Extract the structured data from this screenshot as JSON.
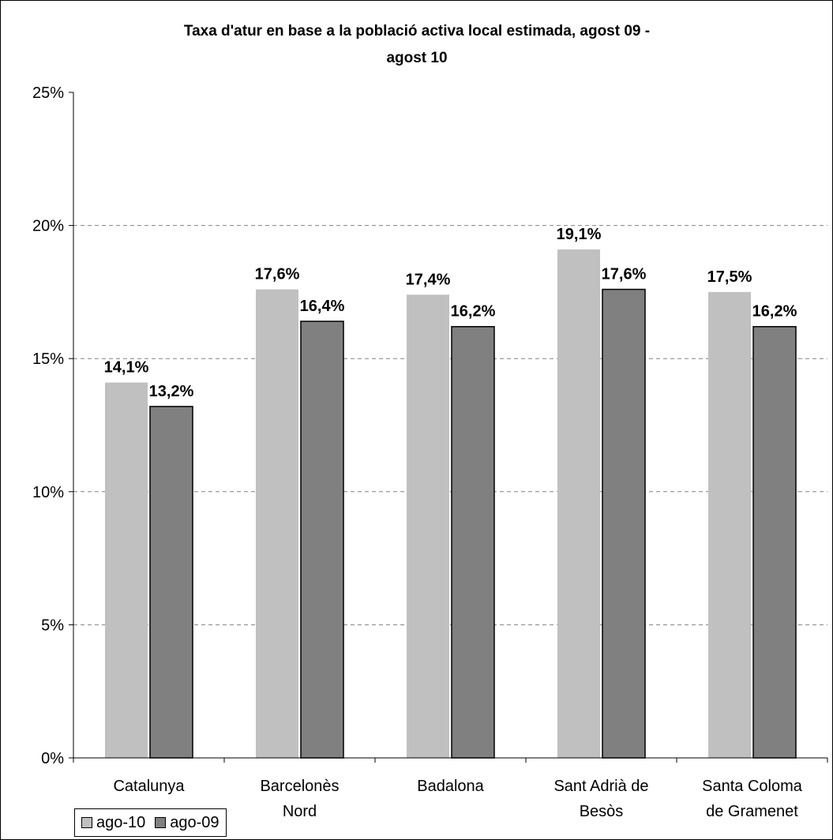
{
  "chart_data": {
    "type": "bar",
    "title_line1": "Taxa d'atur en base a la població activa local estimada, agost 09 -",
    "title_line2": "agost 10",
    "categories": [
      [
        "Catalunya"
      ],
      [
        "Barcelonès",
        "Nord"
      ],
      [
        "Badalona"
      ],
      [
        "Sant Adrià de",
        "Besòs"
      ],
      [
        "Santa Coloma",
        "de Gramenet"
      ]
    ],
    "series": [
      {
        "name": "ago-10",
        "color": "#c0c0c0",
        "values": [
          14.1,
          17.6,
          17.4,
          19.1,
          17.5
        ],
        "labels": [
          "14,1%",
          "17,6%",
          "17,4%",
          "19,1%",
          "17,5%"
        ]
      },
      {
        "name": "ago-09",
        "color": "#808080",
        "values": [
          13.2,
          16.4,
          16.2,
          17.6,
          16.2
        ],
        "labels": [
          "13,2%",
          "16,4%",
          "16,2%",
          "17,6%",
          "16,2%"
        ]
      }
    ],
    "yticks": [
      0,
      5,
      10,
      15,
      20,
      25
    ],
    "ytick_labels": [
      "0%",
      "5%",
      "10%",
      "15%",
      "20%",
      "25%"
    ],
    "ylim": [
      0,
      25
    ],
    "grid": true,
    "legend_position": "bottom-left"
  }
}
